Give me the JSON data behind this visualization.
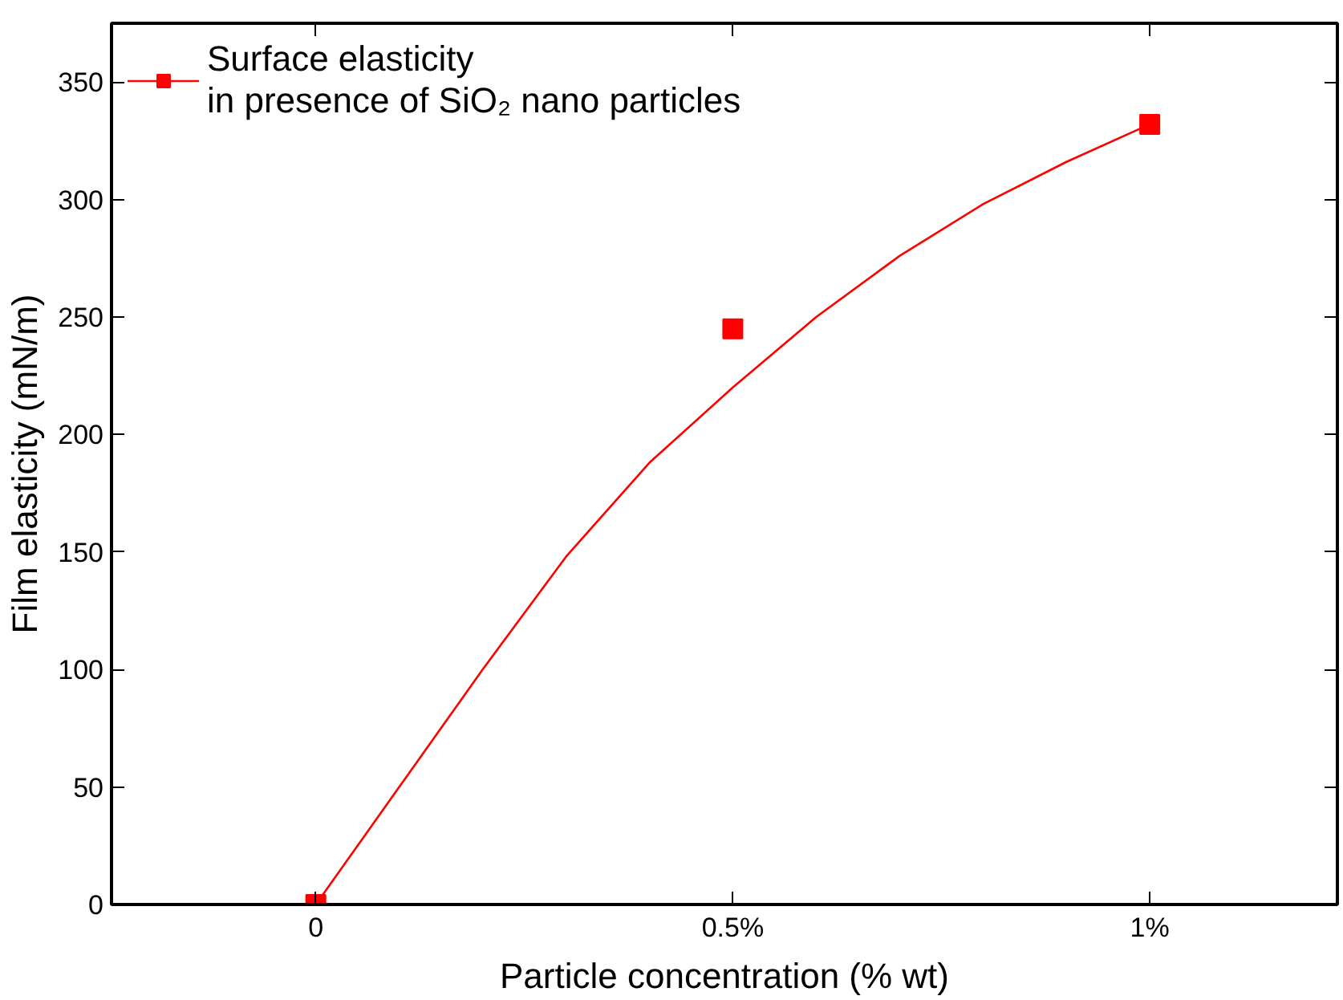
{
  "chart_data": {
    "type": "scatter",
    "xlabel": "Particle concentration (% wt)",
    "ylabel": "Film elasticity (mN/m)",
    "xlim": [
      -0.245,
      1.225
    ],
    "ylim": [
      0,
      375
    ],
    "xticks": [
      {
        "value": 0,
        "label": "0"
      },
      {
        "value": 0.5,
        "label": "0.5%"
      },
      {
        "value": 1,
        "label": "1%"
      }
    ],
    "yticks": [
      0,
      50,
      100,
      150,
      200,
      250,
      300,
      350
    ],
    "series": [
      {
        "name": "Surface elasticity\nin presence of SiO₂ nano particles",
        "marker": "square",
        "color": "#ff0000",
        "x": [
          0,
          0.5,
          1
        ],
        "values": [
          0,
          245,
          332
        ]
      },
      {
        "type": "line",
        "line_style": "solid",
        "color": "#ff0000",
        "x": [
          0,
          0.1,
          0.2,
          0.3,
          0.4,
          0.5,
          0.6,
          0.7,
          0.8,
          0.9,
          1.0
        ],
        "values": [
          0,
          50,
          100,
          148,
          188,
          220,
          250,
          276,
          298,
          316,
          332
        ]
      }
    ],
    "legend": "top left",
    "grid": false
  }
}
